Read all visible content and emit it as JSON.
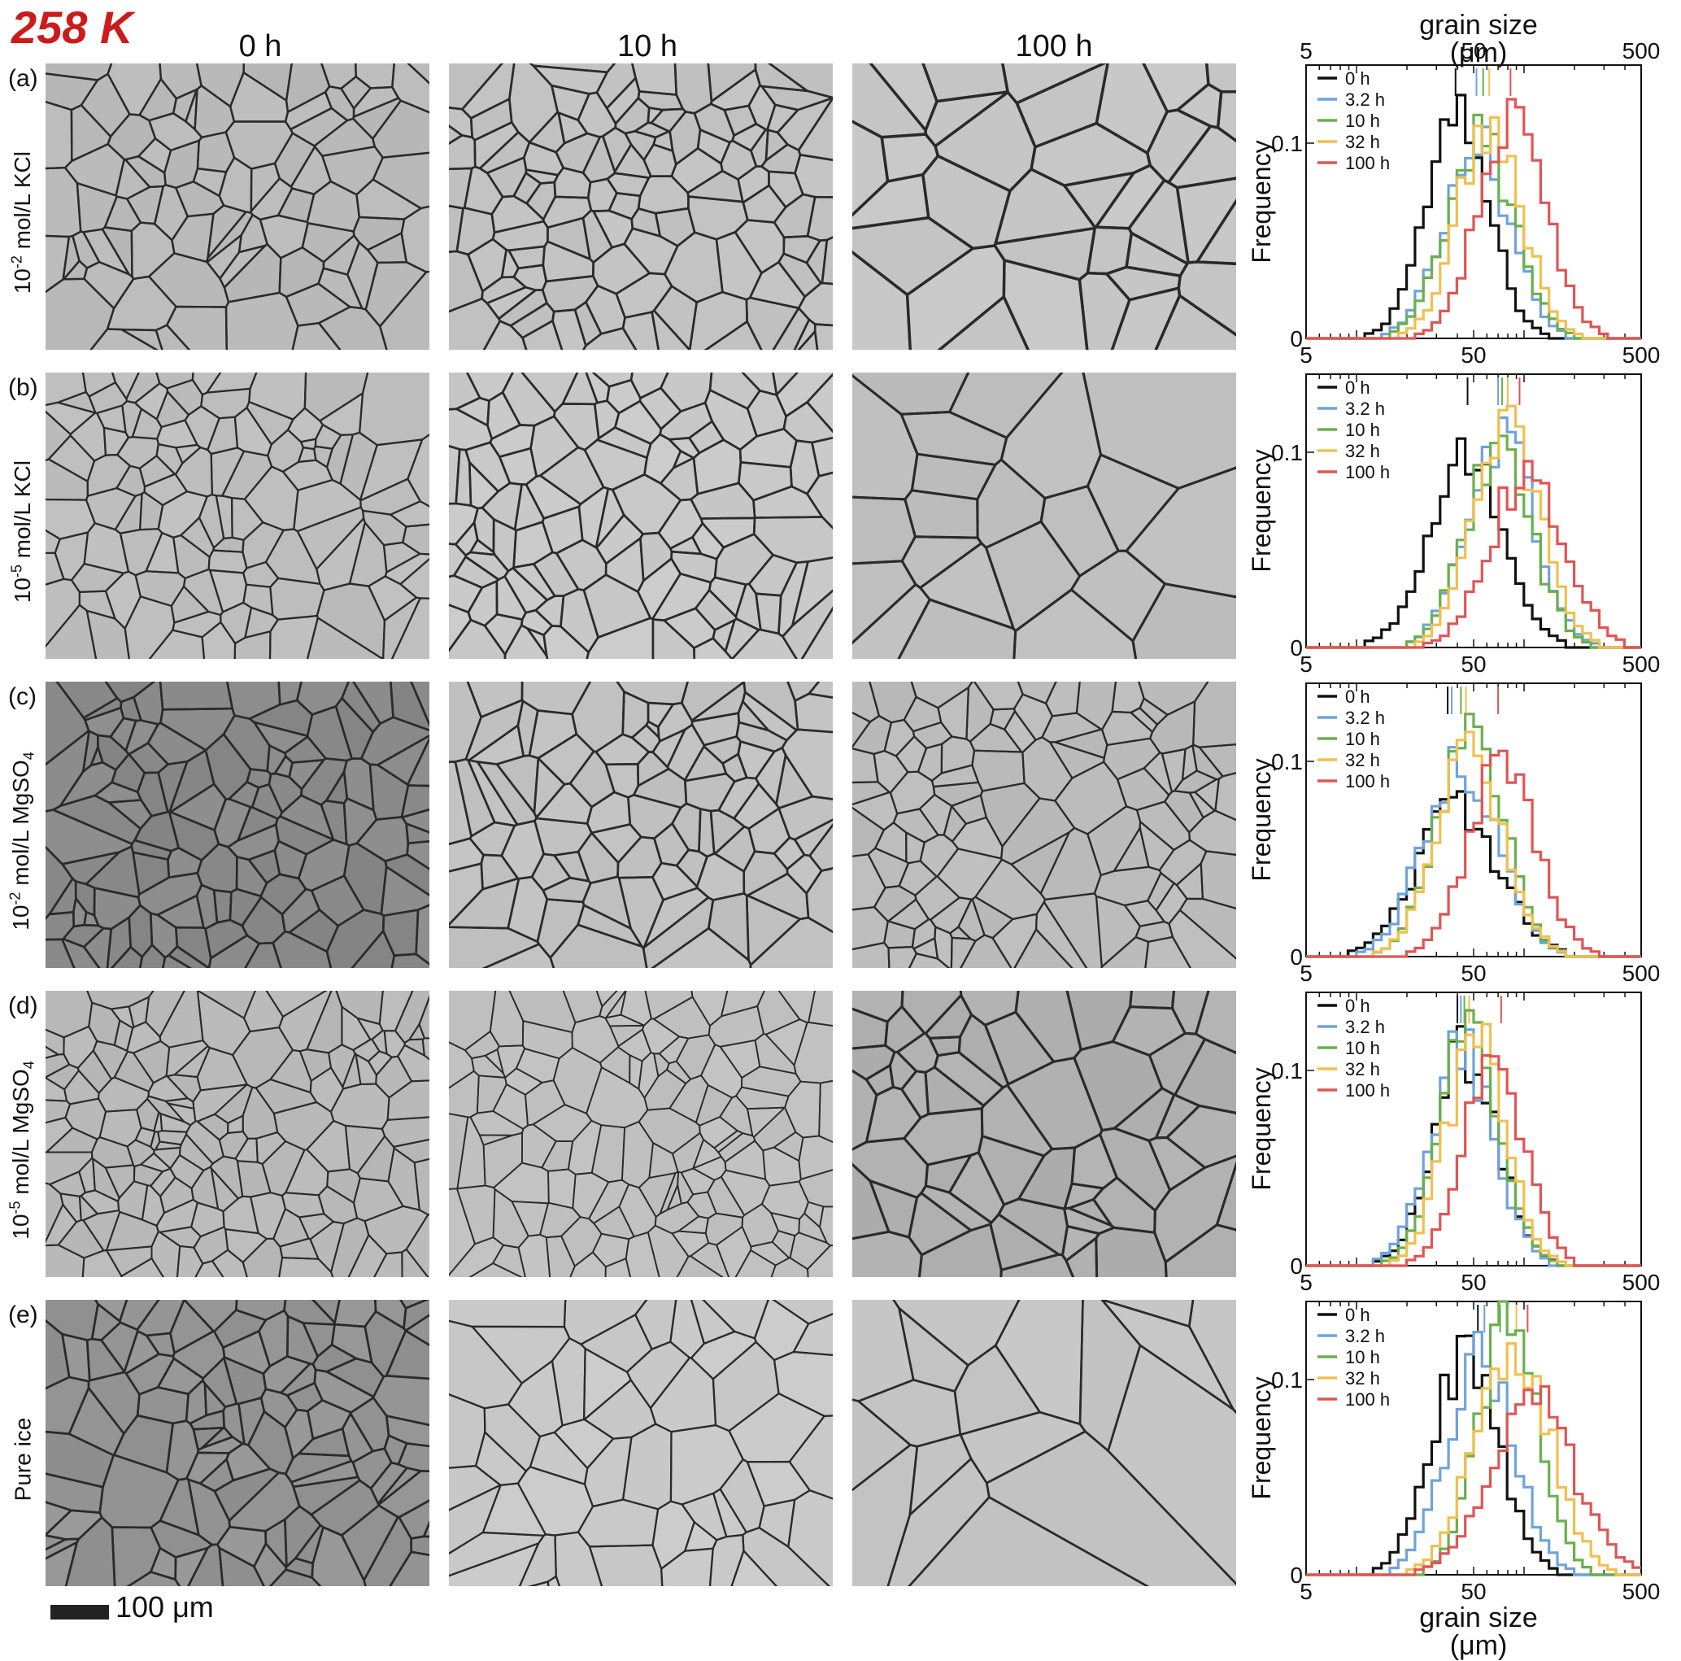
{
  "figure": {
    "temperature_label": "258 K",
    "columns": [
      "0 h",
      "10 h",
      "100 h"
    ],
    "scale_bar_label": "100 μm",
    "top_axis_label": "grain size (μm)",
    "bottom_axis_label": "grain size (μm)",
    "rows": [
      {
        "letter": "(a)",
        "label_base": "10",
        "label_exp": "-2",
        "label_rest": " mol/L KCl",
        "label_sub": ""
      },
      {
        "letter": "(b)",
        "label_base": "10",
        "label_exp": "-5",
        "label_rest": " mol/L KCl",
        "label_sub": ""
      },
      {
        "letter": "(c)",
        "label_base": "10",
        "label_exp": "-2",
        "label_rest": " mol/L MgSO",
        "label_sub": "4"
      },
      {
        "letter": "(d)",
        "label_base": "10",
        "label_exp": "-5",
        "label_rest": " mol/L MgSO",
        "label_sub": "4"
      },
      {
        "letter": "(e)",
        "label_base": "",
        "label_exp": "",
        "label_rest": "Pure ice",
        "label_sub": ""
      }
    ],
    "colors": {
      "title": "#cc1b1b",
      "series": [
        "#111111",
        "#6fa3db",
        "#6ab04c",
        "#f0c050",
        "#e05555"
      ]
    },
    "icons": [
      "micrograph-grain-boundary-image"
    ]
  },
  "chart_data": [
    {
      "type": "step-histogram",
      "panel": "a",
      "ylabel": "Frequency",
      "xscale": "log",
      "xlim": [
        5,
        500
      ],
      "xticks": [
        "5",
        "50",
        "500"
      ],
      "yticks": [
        "0",
        "0.1"
      ],
      "ylim": [
        0,
        0.14
      ],
      "legend": [
        "0 h",
        "3.2 h",
        "10 h",
        "32 h",
        "100 h"
      ],
      "legend_position": "top-left",
      "mean_markers": [
        39,
        52,
        57,
        62,
        83
      ],
      "series": [
        {
          "name": "0 h",
          "peak_x": 40,
          "peak_y": 0.11,
          "width": 0.19
        },
        {
          "name": "3.2 h",
          "peak_x": 52,
          "peak_y": 0.1,
          "width": 0.2
        },
        {
          "name": "10 h",
          "peak_x": 55,
          "peak_y": 0.1,
          "width": 0.2
        },
        {
          "name": "32 h",
          "peak_x": 62,
          "peak_y": 0.11,
          "width": 0.19
        },
        {
          "name": "100 h",
          "peak_x": 85,
          "peak_y": 0.11,
          "width": 0.2
        }
      ]
    },
    {
      "type": "step-histogram",
      "panel": "b",
      "ylabel": "Frequency",
      "xscale": "log",
      "xlim": [
        5,
        500
      ],
      "xticks": [
        "5",
        "50",
        "500"
      ],
      "yticks": [
        "0",
        "0.1"
      ],
      "ylim": [
        0,
        0.14
      ],
      "legend": [
        "0 h",
        "3.2 h",
        "10 h",
        "32 h",
        "100 h"
      ],
      "legend_position": "top-left",
      "mean_markers": [
        46,
        70,
        74,
        80,
        94
      ],
      "series": [
        {
          "name": "0 h",
          "peak_x": 45,
          "peak_y": 0.095,
          "width": 0.22
        },
        {
          "name": "3.2 h",
          "peak_x": 72,
          "peak_y": 0.11,
          "width": 0.2
        },
        {
          "name": "10 h",
          "peak_x": 70,
          "peak_y": 0.1,
          "width": 0.2
        },
        {
          "name": "32 h",
          "peak_x": 80,
          "peak_y": 0.11,
          "width": 0.2
        },
        {
          "name": "100 h",
          "peak_x": 105,
          "peak_y": 0.09,
          "width": 0.22
        }
      ]
    },
    {
      "type": "step-histogram",
      "panel": "c",
      "ylabel": "Frequency",
      "xscale": "log",
      "xlim": [
        5,
        500
      ],
      "xticks": [
        "5",
        "50",
        "500"
      ],
      "yticks": [
        "0",
        "0.1"
      ],
      "ylim": [
        0,
        0.14
      ],
      "legend": [
        "0 h",
        "3.2 h",
        "10 h",
        "32 h",
        "100 h"
      ],
      "legend_position": "top-left",
      "mean_markers": [
        35,
        37,
        42,
        45,
        70
      ],
      "series": [
        {
          "name": "0 h",
          "peak_x": 40,
          "peak_y": 0.075,
          "width": 0.25
        },
        {
          "name": "3.2 h",
          "peak_x": 42,
          "peak_y": 0.1,
          "width": 0.22
        },
        {
          "name": "10 h",
          "peak_x": 48,
          "peak_y": 0.11,
          "width": 0.2
        },
        {
          "name": "32 h",
          "peak_x": 48,
          "peak_y": 0.105,
          "width": 0.2
        },
        {
          "name": "100 h",
          "peak_x": 75,
          "peak_y": 0.1,
          "width": 0.2
        }
      ]
    },
    {
      "type": "step-histogram",
      "panel": "d",
      "ylabel": "Frequency",
      "xscale": "log",
      "xlim": [
        5,
        500
      ],
      "xticks": [
        "5",
        "50",
        "500"
      ],
      "yticks": [
        "0",
        "0.1"
      ],
      "ylim": [
        0,
        0.14
      ],
      "legend": [
        "0 h",
        "3.2 h",
        "10 h",
        "32 h",
        "100 h"
      ],
      "legend_position": "top-left",
      "mean_markers": [
        40,
        42,
        44,
        47,
        73
      ],
      "series": [
        {
          "name": "0 h",
          "peak_x": 45,
          "peak_y": 0.11,
          "width": 0.19
        },
        {
          "name": "3.2 h",
          "peak_x": 43,
          "peak_y": 0.11,
          "width": 0.19
        },
        {
          "name": "10 h",
          "peak_x": 48,
          "peak_y": 0.12,
          "width": 0.18
        },
        {
          "name": "32 h",
          "peak_x": 52,
          "peak_y": 0.115,
          "width": 0.18
        },
        {
          "name": "100 h",
          "peak_x": 65,
          "peak_y": 0.11,
          "width": 0.18
        }
      ]
    },
    {
      "type": "step-histogram",
      "panel": "e",
      "ylabel": "Frequency",
      "xscale": "log",
      "xlim": [
        5,
        500
      ],
      "xticks": [
        "5",
        "50",
        "500"
      ],
      "yticks": [
        "0",
        "0.1"
      ],
      "ylim": [
        0,
        0.14
      ],
      "legend": [
        "0 h",
        "3.2 h",
        "10 h",
        "32 h",
        "100 h"
      ],
      "legend_position": "top-left",
      "mean_markers": [
        53,
        58,
        72,
        90,
        105
      ],
      "series": [
        {
          "name": "0 h",
          "peak_x": 45,
          "peak_y": 0.11,
          "width": 0.2
        },
        {
          "name": "3.2 h",
          "peak_x": 55,
          "peak_y": 0.11,
          "width": 0.2
        },
        {
          "name": "10 h",
          "peak_x": 80,
          "peak_y": 0.13,
          "width": 0.18
        },
        {
          "name": "32 h",
          "peak_x": 85,
          "peak_y": 0.12,
          "width": 0.22
        },
        {
          "name": "100 h",
          "peak_x": 110,
          "peak_y": 0.09,
          "width": 0.25
        }
      ]
    }
  ]
}
